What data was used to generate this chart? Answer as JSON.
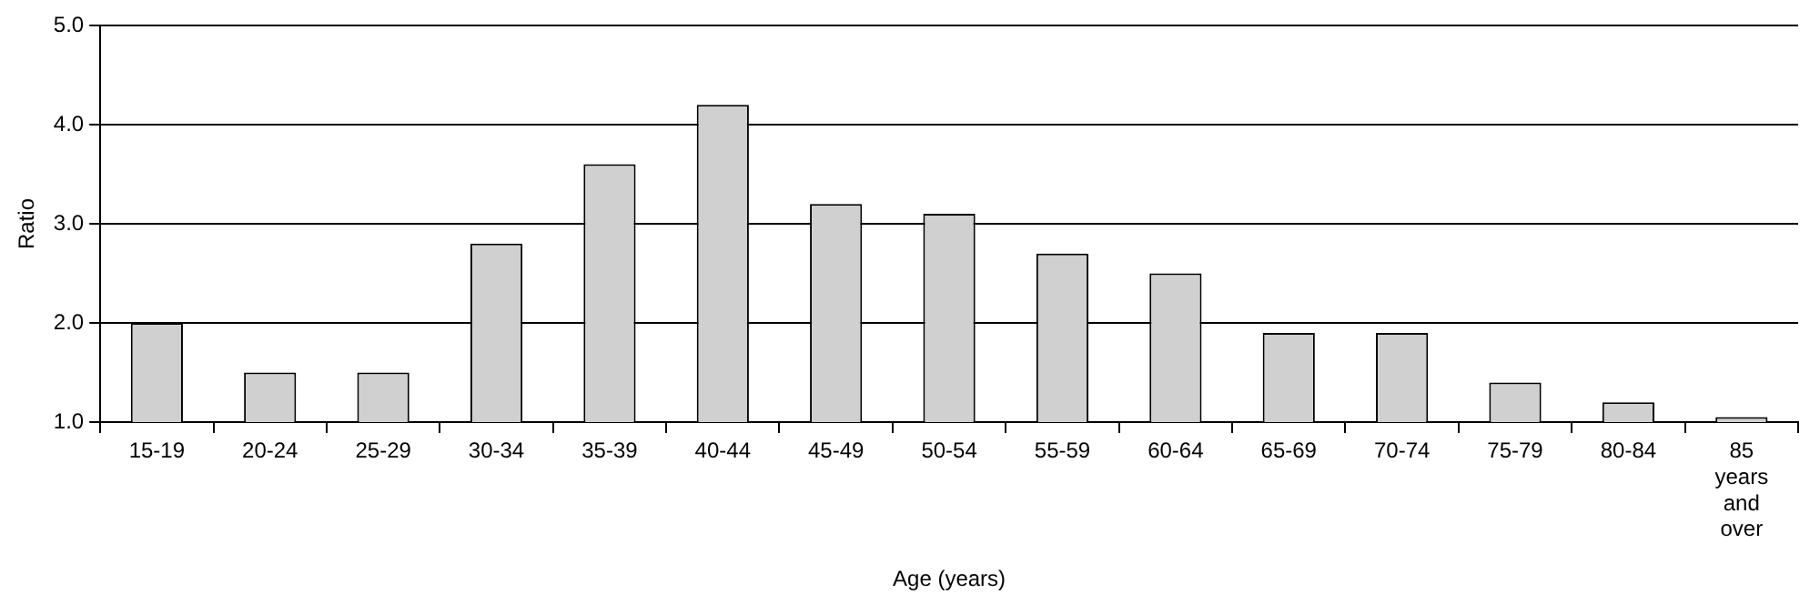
{
  "chart_data": {
    "type": "bar",
    "xlabel": "Age (years)",
    "ylabel": "Ratio",
    "categories": [
      "15-19",
      "20-24",
      "25-29",
      "30-34",
      "35-39",
      "40-44",
      "45-49",
      "50-54",
      "55-59",
      "60-64",
      "65-69",
      "70-74",
      "75-79",
      "80-84",
      "85 years and over"
    ],
    "values": [
      2.0,
      1.5,
      1.5,
      2.8,
      3.6,
      4.2,
      3.2,
      3.1,
      2.7,
      2.5,
      1.9,
      1.9,
      1.4,
      1.2,
      1.05
    ],
    "color": "#d0d0d0",
    "ylim": [
      1.0,
      5.0
    ],
    "yticks": [
      {
        "value": 1,
        "label": "1.0"
      },
      {
        "value": 2,
        "label": "2.0"
      },
      {
        "value": 3,
        "label": "3.0"
      },
      {
        "value": 4,
        "label": "4.0"
      },
      {
        "value": 5,
        "label": "5.0"
      }
    ],
    "grid": "y",
    "legend": false
  }
}
